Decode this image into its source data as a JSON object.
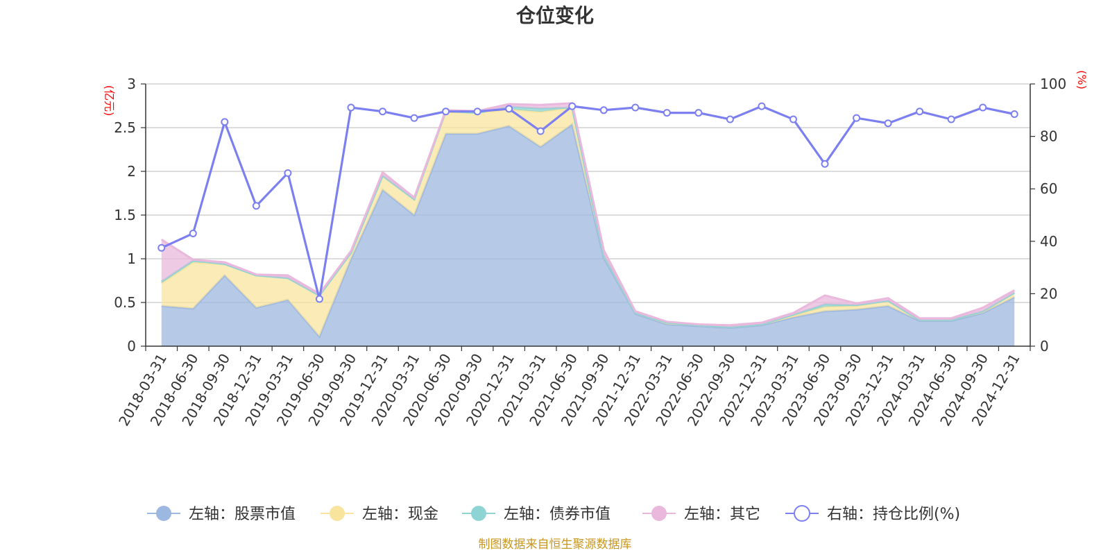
{
  "chart_data": {
    "type": "area",
    "title": "仓位变化",
    "left_unit": "(亿元)",
    "right_unit": "(%)",
    "ylim_left": [
      0,
      3
    ],
    "ylim_right": [
      0,
      100
    ],
    "left_ticks": [
      "0",
      "0.5",
      "1",
      "1.5",
      "2",
      "2.5",
      "3"
    ],
    "right_ticks": [
      "0",
      "20",
      "40",
      "60",
      "80",
      "100"
    ],
    "categories": [
      "2018-03-31",
      "2018-06-30",
      "2018-09-30",
      "2018-12-31",
      "2019-03-31",
      "2019-06-30",
      "2019-09-30",
      "2019-12-31",
      "2020-03-31",
      "2020-06-30",
      "2020-09-30",
      "2020-12-31",
      "2021-03-31",
      "2021-06-30",
      "2021-09-30",
      "2021-12-31",
      "2022-03-31",
      "2022-06-30",
      "2022-09-30",
      "2022-12-31",
      "2023-03-31",
      "2023-06-30",
      "2023-09-30",
      "2023-12-31",
      "2024-03-31",
      "2024-06-30",
      "2024-09-30",
      "2024-12-31"
    ],
    "series": [
      {
        "name": "左轴：股票市值",
        "axis": "left",
        "color": "#9db8e0",
        "values": [
          0.46,
          0.43,
          0.81,
          0.44,
          0.53,
          0.11,
          1.0,
          1.79,
          1.5,
          2.43,
          2.43,
          2.52,
          2.28,
          2.54,
          1.01,
          0.37,
          0.25,
          0.23,
          0.21,
          0.24,
          0.33,
          0.4,
          0.42,
          0.46,
          0.29,
          0.29,
          0.38,
          0.56
        ]
      },
      {
        "name": "左轴：现金",
        "axis": "left",
        "color": "#f9e49e",
        "values": [
          0.26,
          0.53,
          0.13,
          0.37,
          0.25,
          0.47,
          0.07,
          0.16,
          0.18,
          0.25,
          0.24,
          0.19,
          0.4,
          0.19,
          0.03,
          0.01,
          0.02,
          0.01,
          0.01,
          0.01,
          0.02,
          0.05,
          0.04,
          0.06,
          0.01,
          0.01,
          0.02,
          0.05
        ]
      },
      {
        "name": "左轴：债券市值",
        "axis": "left",
        "color": "#8fd4d4",
        "values": [
          0.02,
          0.02,
          0,
          0,
          0,
          0,
          0,
          0,
          0,
          0.01,
          0,
          0.03,
          0.04,
          0,
          0,
          0,
          0,
          0,
          0,
          0,
          0.01,
          0.03,
          0.01,
          0,
          0,
          0,
          0,
          0
        ]
      },
      {
        "name": "左轴：其它",
        "axis": "left",
        "color": "#eab8dc",
        "values": [
          0.48,
          0.01,
          0.02,
          0.01,
          0.03,
          0.02,
          0.02,
          0.04,
          0.02,
          0.01,
          0.02,
          0.03,
          0.04,
          0.05,
          0.06,
          0.02,
          0.01,
          0.01,
          0.02,
          0.02,
          0.02,
          0.1,
          0.02,
          0.03,
          0.02,
          0.02,
          0.04,
          0.03
        ]
      },
      {
        "name": "右轴：持仓比例(%)",
        "axis": "right",
        "color": "#7b7ff0",
        "values": [
          37.5,
          43.0,
          85.5,
          53.5,
          66.0,
          18.0,
          91.0,
          89.5,
          87.0,
          89.5,
          89.5,
          90.5,
          82.0,
          91.5,
          90.0,
          91.0,
          89.0,
          89.0,
          86.5,
          91.5,
          86.5,
          69.5,
          87.0,
          85.0,
          89.5,
          86.5,
          91.0,
          88.5
        ]
      }
    ],
    "legend_position": "bottom",
    "grid": true
  },
  "source_note": "制图数据来自恒生聚源数据库"
}
